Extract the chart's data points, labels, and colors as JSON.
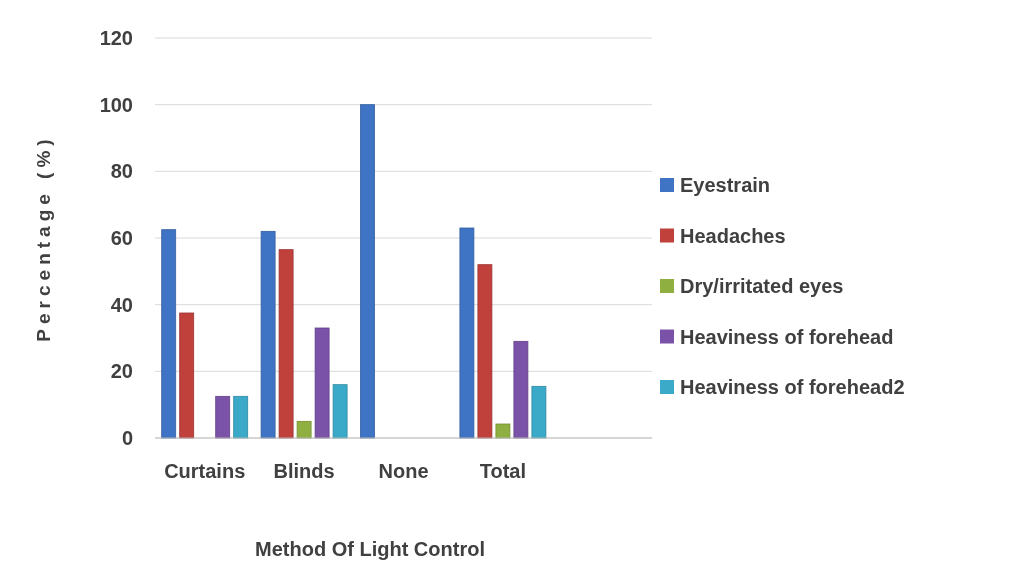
{
  "chart_data": {
    "type": "bar",
    "xlabel": "Method Of Light Control",
    "ylabel": "Percentage (%)",
    "categories": [
      "Curtains",
      "Blinds",
      "None",
      "Total",
      null
    ],
    "series": [
      {
        "name": "Eyestrain",
        "color": "#3f74c4",
        "values": [
          62.5,
          62,
          100,
          63,
          null
        ]
      },
      {
        "name": "Headaches",
        "color": "#c0403c",
        "values": [
          37.5,
          56.5,
          0,
          52,
          null
        ]
      },
      {
        "name": "Dry/irritated eyes",
        "color": "#8fb040",
        "values": [
          0,
          5,
          0,
          4.2,
          null
        ]
      },
      {
        "name": "Heaviness of forehead",
        "color": "#7a52a8",
        "values": [
          12.5,
          33,
          0,
          29,
          null
        ]
      },
      {
        "name": "Heaviness of forehead2",
        "color": "#3aaac8",
        "values": [
          12.5,
          16,
          0,
          15.5,
          null
        ]
      }
    ],
    "ylim": [
      0,
      120
    ],
    "yticks": [
      0,
      20,
      40,
      60,
      80,
      100,
      120
    ],
    "grid": "y",
    "legend": "right"
  }
}
